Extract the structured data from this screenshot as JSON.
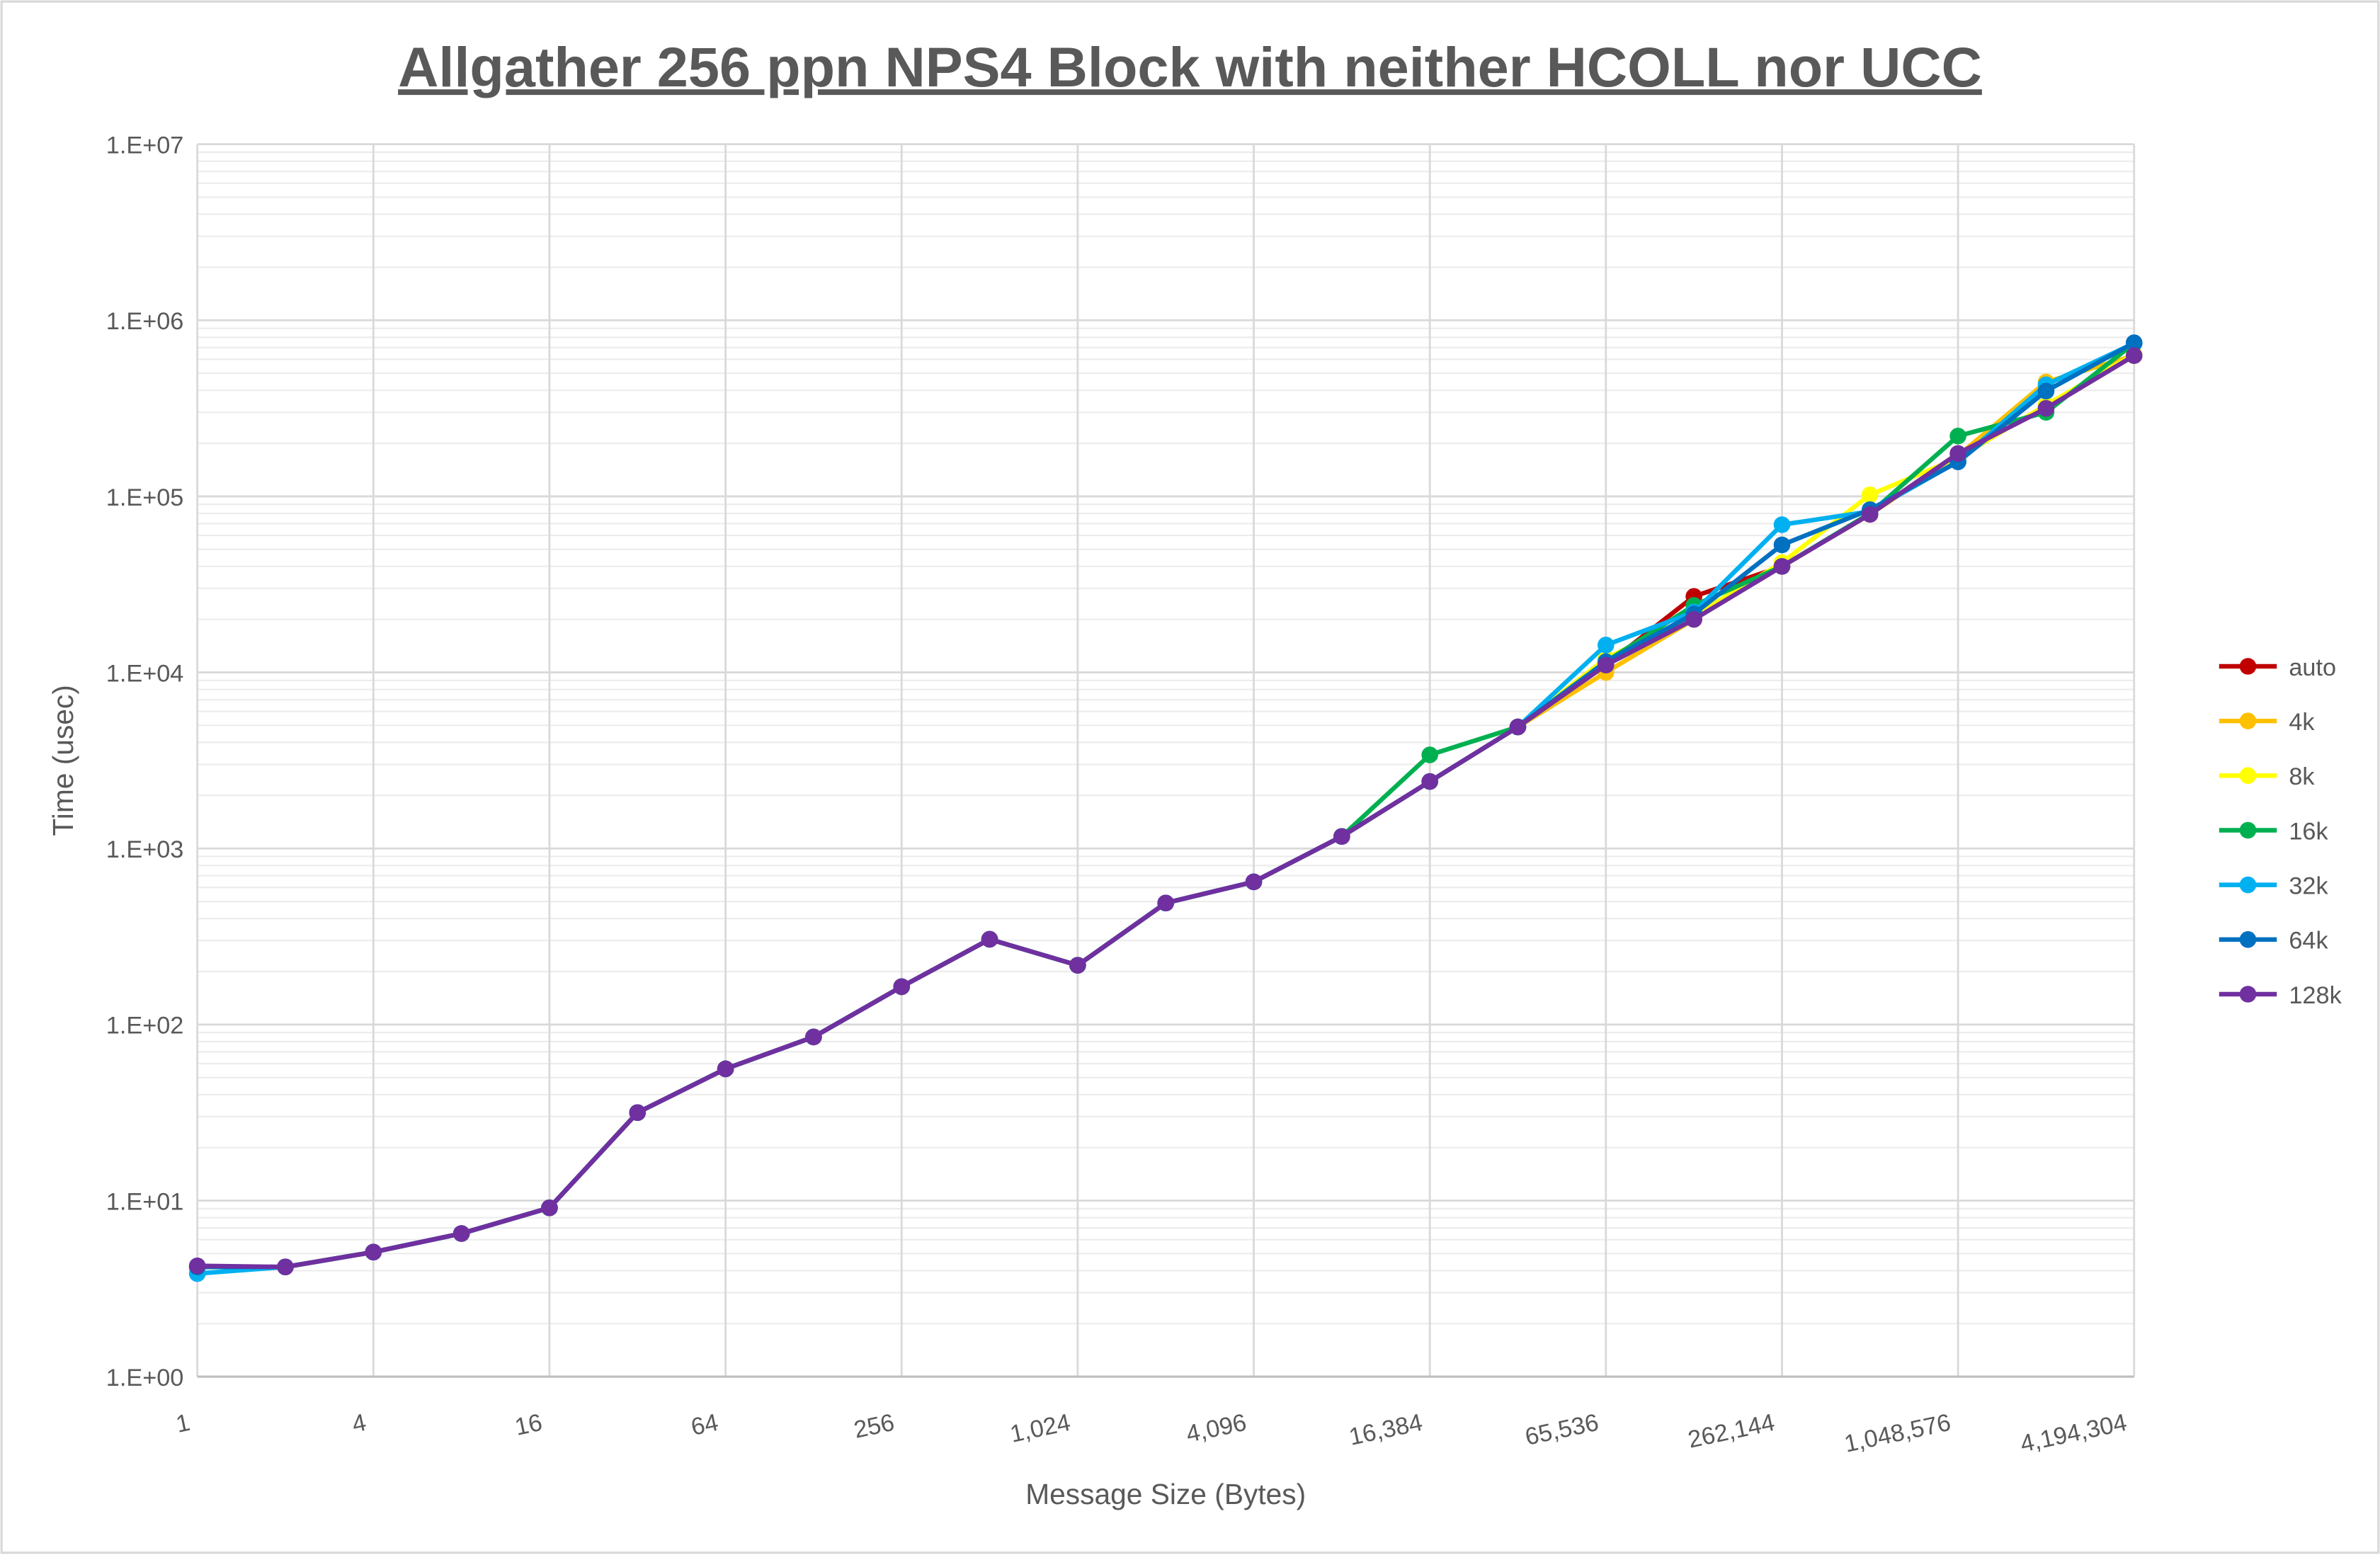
{
  "chart_data": {
    "type": "line",
    "title": "Allgather 256 ppn NPS4 Block with neither HCOLL nor UCC",
    "x_label": "Message Size (Bytes)",
    "y_label": "Time (usec)",
    "log_x": true,
    "log_y": true,
    "grid": true,
    "minor_grid": true,
    "legend": "right",
    "x": [
      1,
      2,
      4,
      8,
      16,
      32,
      64,
      128,
      256,
      512,
      1024,
      2048,
      4096,
      8192,
      16384,
      32768,
      65536,
      131072,
      262144,
      524288,
      1048576,
      2097152,
      4194304
    ],
    "xlim": [
      1,
      4194304
    ],
    "xticks": [
      1,
      4,
      16,
      64,
      256,
      {
        "value": 1024,
        "label": "1,024"
      },
      {
        "value": 4096,
        "label": "4,096"
      },
      {
        "value": 16384,
        "label": "16,384"
      },
      {
        "value": 65536,
        "label": "65,536"
      },
      {
        "value": 262144,
        "label": "262,144"
      },
      {
        "value": 1048576,
        "label": "1,048,576"
      },
      {
        "value": 4194304,
        "label": "4,194,304"
      }
    ],
    "ylim": [
      1,
      10000000
    ],
    "yticks": [
      {
        "value": 1,
        "label": "1.E+00"
      },
      {
        "value": 10,
        "label": "1.E+01"
      },
      {
        "value": 100,
        "label": "1.E+02"
      },
      {
        "value": 1000,
        "label": "1.E+03"
      },
      {
        "value": 10000,
        "label": "1.E+04"
      },
      {
        "value": 100000,
        "label": "1.E+05"
      },
      {
        "value": 1000000,
        "label": "1.E+06"
      },
      {
        "value": 10000000,
        "label": "1.E+07"
      }
    ],
    "series": [
      {
        "name": "auto",
        "color": "#c00000",
        "values": [
          4.2,
          4.2,
          5.1,
          6.5,
          9.1,
          31.6,
          56,
          85,
          164,
          305,
          217,
          490,
          646,
          1170,
          2400,
          4900,
          11000,
          27000,
          40000,
          79000,
          175000,
          316000,
          630000
        ]
      },
      {
        "name": "4k",
        "color": "#ffc000",
        "values": [
          4.2,
          4.2,
          5.1,
          6.5,
          9.1,
          31.6,
          56,
          85,
          164,
          305,
          217,
          490,
          646,
          1170,
          2400,
          4900,
          10000,
          20000,
          40000,
          79000,
          170000,
          446000,
          630000
        ]
      },
      {
        "name": "8k",
        "color": "#ffff00",
        "values": [
          4.2,
          4.2,
          5.1,
          6.5,
          9.1,
          31.6,
          56,
          85,
          164,
          305,
          217,
          490,
          646,
          1170,
          2400,
          4900,
          12000,
          21000,
          42000,
          102000,
          165000,
          330000,
          640000
        ]
      },
      {
        "name": "16k",
        "color": "#00b050",
        "values": [
          4.2,
          4.2,
          5.1,
          6.5,
          9.1,
          31.6,
          56,
          85,
          164,
          305,
          217,
          490,
          646,
          1170,
          3400,
          4900,
          11500,
          24000,
          40000,
          80000,
          220000,
          300000,
          740000
        ]
      },
      {
        "name": "32k",
        "color": "#00b0f0",
        "values": [
          3.85,
          4.2,
          5.1,
          6.5,
          9.1,
          31.6,
          56,
          85,
          164,
          305,
          217,
          490,
          646,
          1170,
          2400,
          4900,
          14300,
          22000,
          69000,
          82000,
          158000,
          430000,
          740000
        ]
      },
      {
        "name": "64k",
        "color": "#0070c0",
        "values": [
          4.2,
          4.2,
          5.1,
          6.5,
          9.1,
          31.6,
          56,
          85,
          164,
          305,
          217,
          490,
          646,
          1170,
          2400,
          4900,
          11500,
          21500,
          53000,
          84000,
          157000,
          396000,
          745000
        ]
      },
      {
        "name": "128k",
        "color": "#7030a0",
        "values": [
          4.26,
          4.2,
          5.1,
          6.5,
          9.1,
          31.6,
          56,
          85,
          164,
          305,
          217,
          490,
          646,
          1170,
          2400,
          4900,
          11000,
          20000,
          40000,
          79000,
          175000,
          316000,
          630000
        ]
      }
    ]
  }
}
